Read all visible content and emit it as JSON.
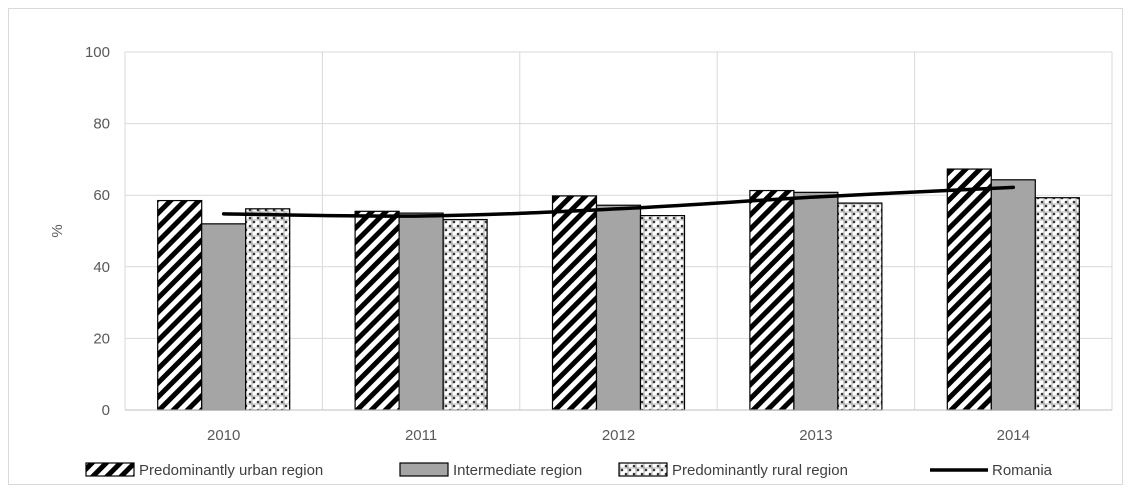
{
  "chart_data": {
    "type": "bar",
    "title": "",
    "xlabel": "",
    "ylabel": "%",
    "ylim": [
      0,
      100
    ],
    "yticks": [
      "0",
      "20",
      "40",
      "60",
      "80",
      "100"
    ],
    "categories": [
      "2010",
      "2011",
      "2012",
      "2013",
      "2014"
    ],
    "grid": "on",
    "legend_position": "bottom",
    "series": [
      {
        "name": "Predominantly urban region",
        "type": "bar",
        "pattern": "diagonal-stripes",
        "values": [
          58.5,
          55.5,
          59.8,
          61.3,
          67.3
        ]
      },
      {
        "name": "Intermediate region",
        "type": "bar",
        "pattern": "solid-gray",
        "values": [
          52.0,
          55.0,
          57.2,
          60.8,
          64.3
        ]
      },
      {
        "name": "Predominantly rural region",
        "type": "bar",
        "pattern": "checkered",
        "values": [
          56.2,
          53.2,
          54.3,
          57.8,
          59.3
        ]
      },
      {
        "name": "Romania",
        "type": "line",
        "values": [
          54.8,
          54.2,
          56.2,
          59.5,
          62.2
        ]
      }
    ],
    "colors": {
      "gray_bar": "#a5a5a5",
      "line": "#000000",
      "grid": "#d9d9d9",
      "text": "#595959"
    }
  }
}
